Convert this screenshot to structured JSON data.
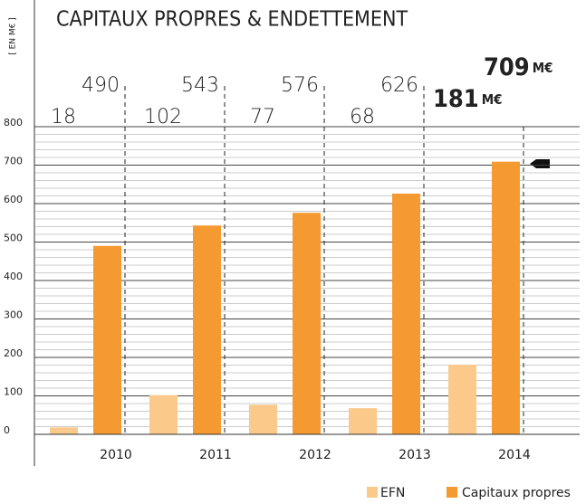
{
  "chart_data": {
    "type": "bar",
    "title": "CAPITAUX PROPRES & ENDETTEMENT",
    "y_label": "[ EN M€ ]",
    "unit": "M€",
    "categories": [
      "2010",
      "2011",
      "2012",
      "2013",
      "2014"
    ],
    "series": [
      {
        "name": "EFN",
        "color": "#fbc98a",
        "values": [
          18,
          102,
          77,
          68,
          181
        ]
      },
      {
        "name": "Capitaux propres",
        "color": "#f59a30",
        "values": [
          490,
          543,
          576,
          626,
          709
        ]
      }
    ],
    "ylim": [
      0,
      800
    ],
    "yticks": [
      0,
      100,
      200,
      300,
      400,
      500,
      600,
      700,
      800
    ],
    "minor_yticks": [
      20,
      40,
      60,
      80,
      120,
      140,
      160,
      180,
      220,
      240,
      260,
      280,
      320,
      340,
      360,
      380,
      420,
      440,
      460,
      480,
      520,
      540,
      560,
      580,
      620,
      640,
      660,
      680,
      720,
      740,
      760,
      780
    ],
    "grid": true
  }
}
